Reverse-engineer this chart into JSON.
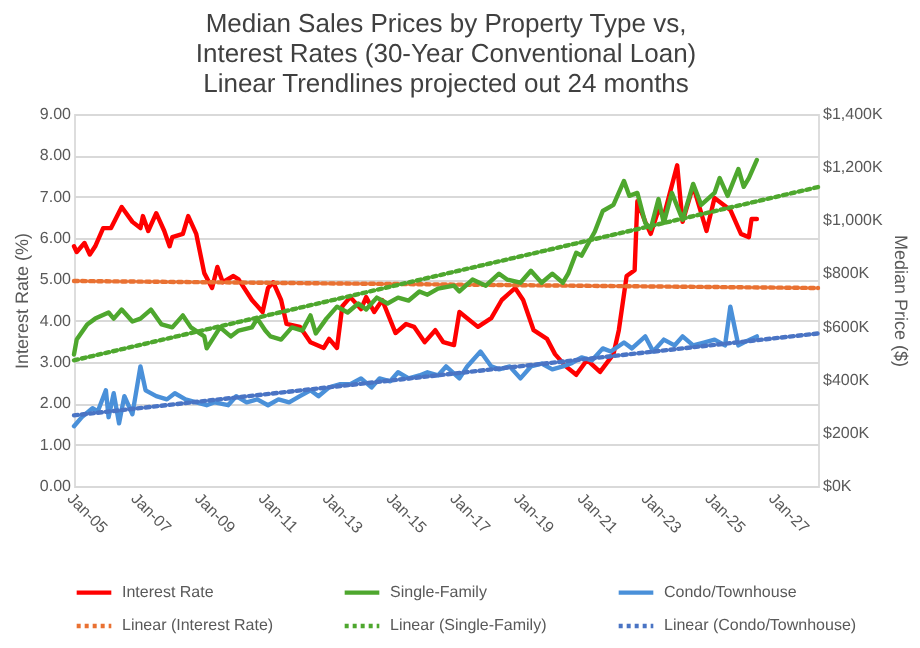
{
  "chart_data": {
    "type": "line",
    "title": "Median Sales Prices by Property Type vs,\nInterest Rates (30-Year Conventional Loan)\nLinear Trendlines projected out 24 months",
    "ylabel": "Interest Rate (%)",
    "y2label": "Median Price ($)",
    "grid": "y",
    "legend": "bottom",
    "xlim": [
      "2005-01",
      "2028-05"
    ],
    "xticks": [
      {
        "value": "2005-01",
        "label": "Jan-05"
      },
      {
        "value": "2007-01",
        "label": "Jan-07"
      },
      {
        "value": "2009-01",
        "label": "Jan-09"
      },
      {
        "value": "2011-01",
        "label": "Jan-11"
      },
      {
        "value": "2013-01",
        "label": "Jan-13"
      },
      {
        "value": "2015-01",
        "label": "Jan-15"
      },
      {
        "value": "2017-01",
        "label": "Jan-17"
      },
      {
        "value": "2019-01",
        "label": "Jan-19"
      },
      {
        "value": "2021-01",
        "label": "Jan-21"
      },
      {
        "value": "2023-01",
        "label": "Jan-23"
      },
      {
        "value": "2025-01",
        "label": "Jan-25"
      },
      {
        "value": "2027-01",
        "label": "Jan-27"
      }
    ],
    "ylim": [
      0,
      9
    ],
    "yticks": [
      {
        "value": 0,
        "label": "0.00"
      },
      {
        "value": 1,
        "label": "1.00"
      },
      {
        "value": 2,
        "label": "2.00"
      },
      {
        "value": 3,
        "label": "3.00"
      },
      {
        "value": 4,
        "label": "4.00"
      },
      {
        "value": 5,
        "label": "5.00"
      },
      {
        "value": 6,
        "label": "6.00"
      },
      {
        "value": 7,
        "label": "7.00"
      },
      {
        "value": 8,
        "label": "8.00"
      },
      {
        "value": 9,
        "label": "9.00"
      }
    ],
    "y2lim": [
      0,
      1400
    ],
    "y2ticks": [
      {
        "value": 0,
        "label": "$0K"
      },
      {
        "value": 200,
        "label": "$200K"
      },
      {
        "value": 400,
        "label": "$400K"
      },
      {
        "value": 600,
        "label": "$600K"
      },
      {
        "value": 800,
        "label": "$800K"
      },
      {
        "value": 1000,
        "label": "$1,000K"
      },
      {
        "value": 1200,
        "label": "$1,200K"
      },
      {
        "value": 1400,
        "label": "$1,400K"
      }
    ],
    "series": [
      {
        "name": "Interest Rate",
        "color": "#ff0000",
        "line_style": "solid",
        "x": [
          "2005-01",
          "2005-02",
          "2005-05",
          "2005-07",
          "2005-09",
          "2005-12",
          "2006-03",
          "2006-07",
          "2006-11",
          "2007-02",
          "2007-03",
          "2007-05",
          "2007-08",
          "2007-11",
          "2008-01",
          "2008-02",
          "2008-06",
          "2008-08",
          "2008-11",
          "2009-02",
          "2009-05",
          "2009-07",
          "2009-09",
          "2010-01",
          "2010-03",
          "2010-08",
          "2010-12",
          "2011-02",
          "2011-04",
          "2011-07",
          "2011-09",
          "2012-02",
          "2012-06",
          "2012-11",
          "2013-01",
          "2013-04",
          "2013-06",
          "2013-09",
          "2014-01",
          "2014-03",
          "2014-06",
          "2014-09",
          "2015-02",
          "2015-06",
          "2015-09",
          "2016-01",
          "2016-05",
          "2016-08",
          "2016-12",
          "2017-02",
          "2017-09",
          "2018-02",
          "2018-06",
          "2018-11",
          "2019-02",
          "2019-06",
          "2019-11",
          "2020-02",
          "2020-06",
          "2020-10",
          "2021-02",
          "2021-07",
          "2021-12",
          "2022-02",
          "2022-05",
          "2022-08",
          "2022-09",
          "2022-12",
          "2023-02",
          "2023-05",
          "2023-07",
          "2023-12",
          "2024-02",
          "2024-06",
          "2024-11",
          "2025-02",
          "2025-08",
          "2025-12",
          "2026-03",
          "2026-04",
          "2026-06"
        ],
        "values": [
          5.8,
          5.66,
          5.88,
          5.6,
          5.8,
          6.24,
          6.24,
          6.75,
          6.39,
          6.24,
          6.53,
          6.17,
          6.6,
          6.17,
          5.8,
          6.02,
          6.1,
          6.53,
          6.1,
          5.15,
          4.79,
          5.3,
          4.93,
          5.08,
          5.0,
          4.5,
          4.21,
          4.79,
          4.93,
          4.5,
          3.92,
          3.85,
          3.48,
          3.34,
          3.56,
          3.34,
          4.35,
          4.57,
          4.28,
          4.57,
          4.21,
          4.5,
          3.7,
          3.92,
          3.85,
          3.48,
          3.77,
          3.48,
          3.41,
          4.21,
          3.85,
          4.06,
          4.5,
          4.79,
          4.5,
          3.77,
          3.56,
          3.19,
          2.9,
          2.69,
          3.05,
          2.76,
          3.19,
          3.77,
          5.08,
          5.22,
          6.89,
          6.39,
          6.1,
          6.68,
          6.53,
          7.76,
          6.39,
          7.26,
          6.17,
          6.97,
          6.68,
          6.1,
          6.02,
          6.46,
          6.46
        ]
      },
      {
        "name": "Single-Family",
        "color": "#4ea72e",
        "axis": "y2",
        "line_style": "solid",
        "x": [
          "2005-01",
          "2005-02",
          "2005-06",
          "2005-09",
          "2006-02",
          "2006-04",
          "2006-07",
          "2006-11",
          "2007-02",
          "2007-06",
          "2007-10",
          "2008-02",
          "2008-06",
          "2008-09",
          "2009-02",
          "2009-03",
          "2009-08",
          "2009-12",
          "2010-03",
          "2010-08",
          "2010-10",
          "2011-01",
          "2011-03",
          "2011-07",
          "2011-11",
          "2012-03",
          "2012-06",
          "2012-08",
          "2012-12",
          "2013-04",
          "2013-08",
          "2013-12",
          "2014-03",
          "2014-07",
          "2014-11",
          "2015-03",
          "2015-07",
          "2015-11",
          "2016-02",
          "2016-06",
          "2016-12",
          "2017-02",
          "2017-07",
          "2017-12",
          "2018-05",
          "2018-08",
          "2019-01",
          "2019-05",
          "2019-09",
          "2020-01",
          "2020-05",
          "2020-07",
          "2020-10",
          "2020-12",
          "2021-05",
          "2021-08",
          "2021-12",
          "2022-04",
          "2022-06",
          "2022-09",
          "2022-12",
          "2023-02",
          "2023-05",
          "2023-07",
          "2023-10",
          "2024-02",
          "2024-06",
          "2024-09",
          "2025-02",
          "2025-04",
          "2025-07",
          "2025-11",
          "2026-01",
          "2026-03",
          "2026-06"
        ],
        "values": [
          495,
          551,
          608,
          630,
          653,
          630,
          664,
          619,
          630,
          664,
          608,
          597,
          642,
          597,
          563,
          518,
          597,
          563,
          585,
          597,
          630,
          585,
          563,
          551,
          597,
          585,
          642,
          574,
          630,
          675,
          653,
          687,
          664,
          709,
          687,
          709,
          698,
          732,
          720,
          743,
          754,
          732,
          777,
          754,
          799,
          777,
          765,
          810,
          765,
          799,
          765,
          799,
          878,
          867,
          957,
          1035,
          1058,
          1148,
          1092,
          1103,
          990,
          968,
          1080,
          990,
          1103,
          1002,
          1137,
          1058,
          1103,
          1159,
          1092,
          1193,
          1126,
          1159,
          1227
        ]
      },
      {
        "name": "Condo/Townhouse",
        "color": "#4a90d9",
        "axis": "y2",
        "line_style": "solid",
        "x": [
          "2005-01",
          "2005-04",
          "2005-08",
          "2005-10",
          "2006-01",
          "2006-02",
          "2006-04",
          "2006-06",
          "2006-08",
          "2006-11",
          "2007-02",
          "2007-04",
          "2007-08",
          "2007-12",
          "2008-03",
          "2008-07",
          "2008-11",
          "2009-03",
          "2009-06",
          "2009-11",
          "2010-02",
          "2010-06",
          "2010-10",
          "2011-02",
          "2011-06",
          "2011-10",
          "2012-02",
          "2012-06",
          "2012-09",
          "2013-01",
          "2013-05",
          "2013-09",
          "2014-01",
          "2014-05",
          "2014-08",
          "2014-12",
          "2015-03",
          "2015-07",
          "2015-11",
          "2016-02",
          "2016-06",
          "2016-09",
          "2017-02",
          "2017-05",
          "2017-10",
          "2018-02",
          "2018-05",
          "2018-09",
          "2019-01",
          "2019-05",
          "2019-09",
          "2020-01",
          "2020-05",
          "2020-08",
          "2020-12",
          "2021-04",
          "2021-08",
          "2021-11",
          "2022-04",
          "2022-07",
          "2022-12",
          "2023-03",
          "2023-07",
          "2023-11",
          "2024-02",
          "2024-06",
          "2024-10",
          "2025-02",
          "2025-06",
          "2025-08",
          "2025-11",
          "2026-01",
          "2026-06"
        ],
        "values": [
          225,
          259,
          293,
          281,
          360,
          259,
          349,
          236,
          338,
          270,
          450,
          360,
          338,
          326,
          349,
          326,
          315,
          304,
          315,
          304,
          338,
          315,
          326,
          304,
          326,
          315,
          338,
          360,
          338,
          371,
          383,
          383,
          405,
          371,
          405,
          394,
          428,
          405,
          416,
          428,
          416,
          450,
          405,
          450,
          506,
          450,
          439,
          450,
          405,
          450,
          461,
          439,
          450,
          461,
          484,
          473,
          518,
          506,
          540,
          518,
          563,
          506,
          551,
          529,
          563,
          529,
          540,
          551,
          529,
          675,
          529,
          540,
          563
        ]
      },
      {
        "name": "Linear (Interest Rate)",
        "color": "#e97132",
        "line_style": "dotted",
        "x": [
          "2005-01",
          "2028-05"
        ],
        "values": [
          4.96,
          4.79
        ]
      },
      {
        "name": "Linear (Single-Family)",
        "color": "#4ea72e",
        "axis": "y2",
        "line_style": "dotted",
        "x": [
          "2005-01",
          "2028-05"
        ],
        "values": [
          473,
          1125
        ]
      },
      {
        "name": "Linear (Condo/Townhouse)",
        "color": "#4a74c4",
        "axis": "y2",
        "line_style": "dotted",
        "x": [
          "2005-01",
          "2028-05"
        ],
        "values": [
          266,
          574
        ]
      }
    ]
  }
}
